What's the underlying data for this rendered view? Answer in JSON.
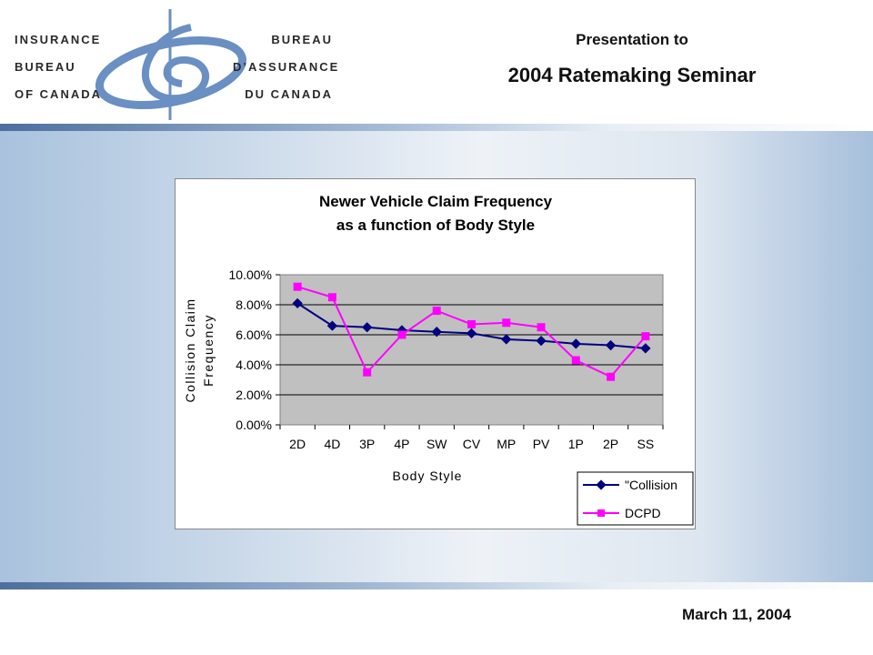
{
  "header": {
    "logo_en": [
      "Insurance",
      "Bureau",
      "of Canada"
    ],
    "logo_fr": [
      "Bureau",
      "d’assurance",
      "du Canada"
    ],
    "presentation_to": "Presentation to",
    "seminar_title": "2004 Ratemaking Seminar"
  },
  "footer": {
    "date": "March 11, 2004"
  },
  "chart_data": {
    "type": "line",
    "title_line1": "Newer Vehicle Claim Frequency",
    "title_line2": "as a function of Body Style",
    "xlabel": "Body Style",
    "ylabel_line1": "Collision Claim",
    "ylabel_line2": "Frequency",
    "categories": [
      "2D",
      "4D",
      "3P",
      "4P",
      "SW",
      "CV",
      "MP",
      "PV",
      "1P",
      "2P",
      "SS"
    ],
    "ylim": [
      0,
      10
    ],
    "yticks": [
      "0.00%",
      "2.00%",
      "4.00%",
      "6.00%",
      "8.00%",
      "10.00%"
    ],
    "grid": true,
    "legend_position": "bottom-right",
    "series": [
      {
        "name": "\"Collision",
        "color": "#000080",
        "marker": "diamond",
        "values": [
          8.1,
          6.6,
          6.5,
          6.3,
          6.2,
          6.1,
          5.7,
          5.6,
          5.4,
          5.3,
          5.1
        ]
      },
      {
        "name": "DCPD",
        "color": "#ff00ff",
        "marker": "square",
        "values": [
          9.2,
          8.5,
          3.5,
          6.0,
          7.6,
          6.7,
          6.8,
          6.5,
          4.3,
          3.2,
          5.9
        ]
      }
    ]
  }
}
